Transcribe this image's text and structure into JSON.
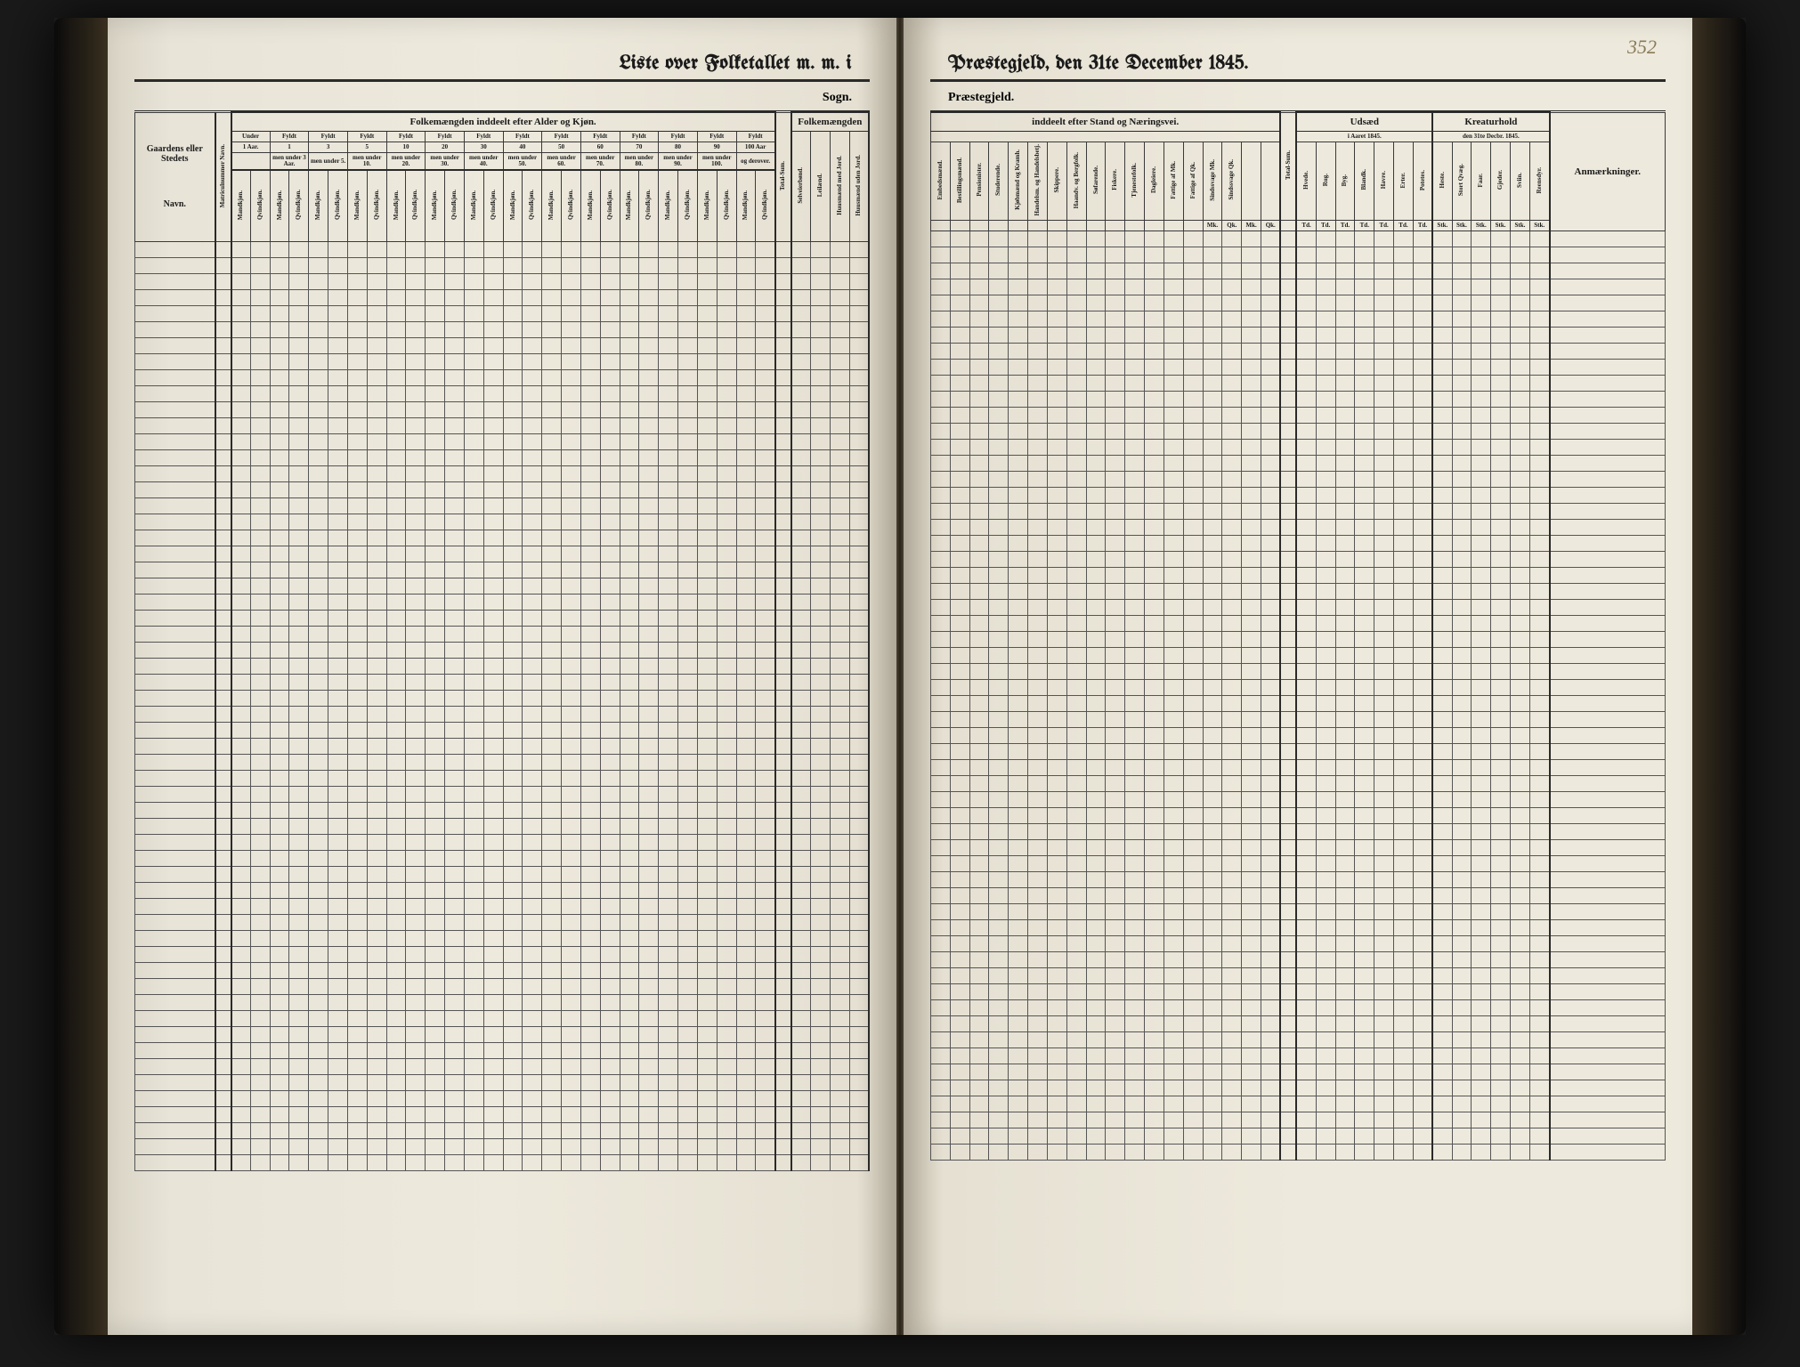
{
  "page_number": "352",
  "title_left": "Liste over Folketallet m. m. i",
  "title_right": "Præstegjeld, den 31te December 1845.",
  "sogn_label": "Sogn.",
  "praestegjeld_label": "Præstegjeld.",
  "left_page": {
    "col_gaarden": "Gaardens eller Stedets",
    "col_navn": "Navn.",
    "col_matr": "Matriculnummer Navn.",
    "section_folkemaengde": "Folkemængden inddeelt efter Alder og Kjøn.",
    "section_folkemaengden": "Folkemængden",
    "age_groups": [
      {
        "top": "Under",
        "mid": "1 Aar.",
        "bot": ""
      },
      {
        "top": "Fyldt",
        "mid": "1",
        "bot": "3 Aar."
      },
      {
        "top": "Fyldt",
        "mid": "3",
        "bot": "5."
      },
      {
        "top": "Fyldt",
        "mid": "5",
        "bot": "10."
      },
      {
        "top": "Fyldt",
        "mid": "10",
        "bot": "20."
      },
      {
        "top": "Fyldt",
        "mid": "20",
        "bot": "30."
      },
      {
        "top": "Fyldt",
        "mid": "30",
        "bot": "40."
      },
      {
        "top": "Fyldt",
        "mid": "40",
        "bot": "50."
      },
      {
        "top": "Fyldt",
        "mid": "50",
        "bot": "60."
      },
      {
        "top": "Fyldt",
        "mid": "60",
        "bot": "70."
      },
      {
        "top": "Fyldt",
        "mid": "70",
        "bot": "80."
      },
      {
        "top": "Fyldt",
        "mid": "80",
        "bot": "90."
      },
      {
        "top": "Fyldt",
        "mid": "90",
        "bot": "100."
      },
      {
        "top": "Fyldt",
        "mid": "100 Aar",
        "bot": "derover."
      }
    ],
    "under_label": "men under",
    "og_label": "og",
    "mk": "Mandkjøn.",
    "qk": "Qvindkjøn.",
    "total_sum": "Total-Sum.",
    "folkem_cols": [
      "Selveierbønd.",
      "Leilænd.",
      "Huusmænd med Jord.",
      "Huusmænd uden Jord."
    ]
  },
  "right_page": {
    "section_stand": "inddeelt efter Stand og Næringsvei.",
    "section_udsaed": "Udsæd",
    "udsaed_sub": "i Aaret 1845.",
    "section_kreatur": "Kreaturhold",
    "kreatur_sub": "den 31te Decbr. 1845.",
    "col_anm": "Anmærkninger.",
    "stand_cols": [
      "Embedsmænd.",
      "Bestillingsmænd.",
      "Pensionister.",
      "Studerende.",
      "Kjøbmænd og Kramh.",
      "Handelsm. og Handelsbetj.",
      "Skippere.",
      "Haandv. og Bergfolk.",
      "Søfarende.",
      "Fiskere.",
      "Tjenestefolk.",
      "Dagleiere.",
      "Fattige af Mk.",
      "Fattige af Qk.",
      "Sindssvage Mk.",
      "Sindssvage Qk."
    ],
    "total_sum": "Total-Sum.",
    "mk_abbr": "Mk.",
    "qk_abbr": "Qk.",
    "udsaed_cols": [
      "Hvede.",
      "Rug.",
      "Byg.",
      "Blandk.",
      "Havre.",
      "Erter.",
      "Potetes."
    ],
    "td_abbr": "Td.",
    "kreatur_cols": [
      "Heste.",
      "Stort Qvæg.",
      "Faar.",
      "Gjeder.",
      "Sviin.",
      "Reensdyr."
    ],
    "stk_abbr": "Stk."
  },
  "body_rows": 58,
  "colors": {
    "paper": "#ede9dc",
    "ink": "#1a1a1a",
    "rule": "#3a3a3a",
    "pencil": "#8a7a5a"
  }
}
